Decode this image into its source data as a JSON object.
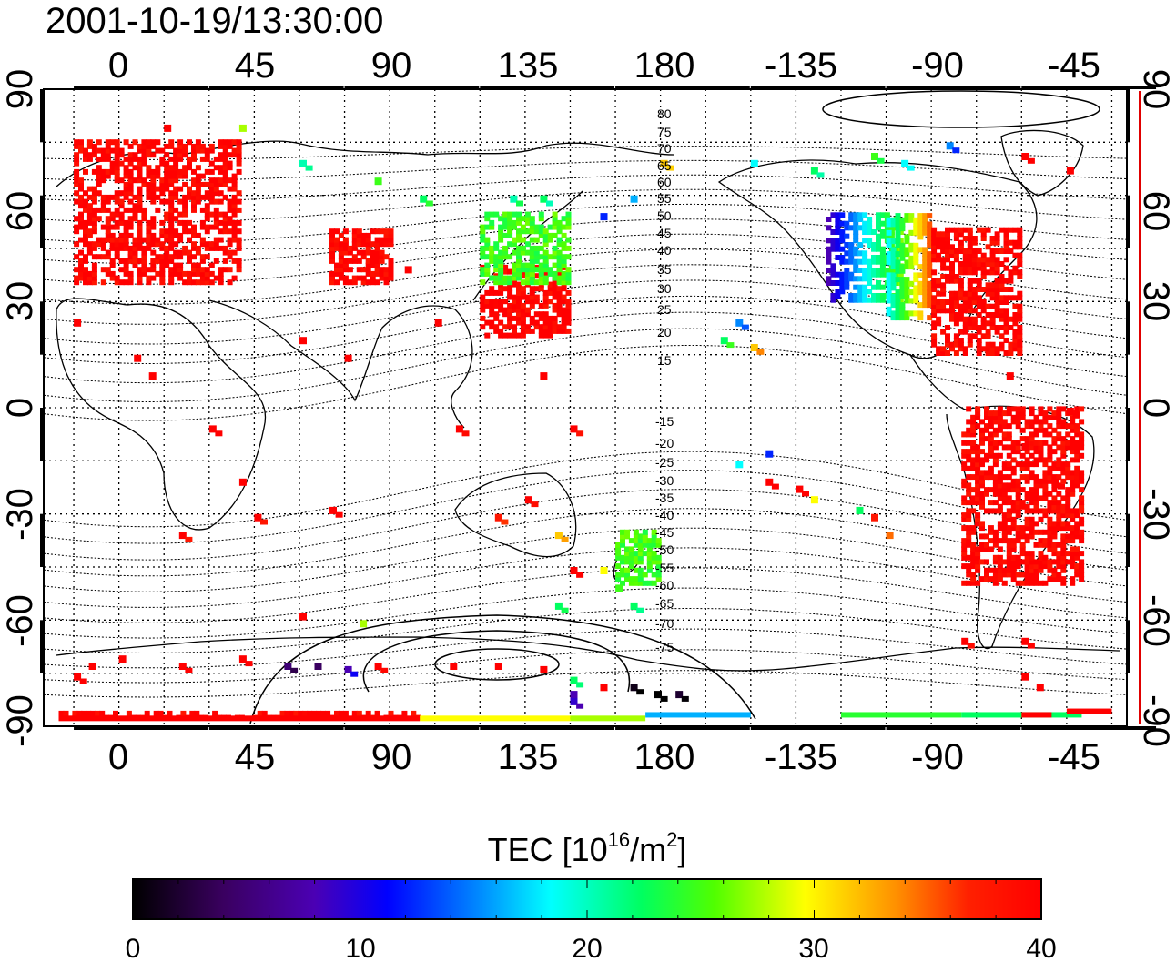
{
  "timestamp": "2001-10-19/13:30:00",
  "axes": {
    "top_ticks": [
      "0",
      "45",
      "90",
      "135",
      "180",
      "-135",
      "-90",
      "-45"
    ],
    "bottom_ticks": [
      "0",
      "45",
      "90",
      "135",
      "180",
      "-135",
      "-90",
      "-45"
    ],
    "left_ticks": [
      "90",
      "60",
      "30",
      "0",
      "-30",
      "-60",
      "-90"
    ],
    "right_ticks": [
      "90",
      "60",
      "30",
      "0",
      "-30",
      "-60",
      "-90"
    ]
  },
  "contour_labels": {
    "north": [
      "80",
      "75",
      "70",
      "65",
      "60",
      "55",
      "50",
      "45",
      "40",
      "35",
      "30",
      "25",
      "20",
      "15"
    ],
    "south": [
      "-15",
      "-20",
      "-25",
      "-30",
      "-35",
      "-40",
      "-45",
      "-50",
      "-55",
      "-60",
      "-65",
      "-70",
      "-75"
    ]
  },
  "colorbar": {
    "title_main": "TEC  [10",
    "title_sup1": "16",
    "title_mid": "/m",
    "title_sup2": "2",
    "title_end": "]",
    "ticks": [
      "0",
      "10",
      "20",
      "30",
      "40"
    ],
    "min": 0,
    "max": 40
  },
  "colors": {
    "high_tec": "#ff0000",
    "low_tec": "#1e2bff",
    "frame": "#000000",
    "right_axis_accent": "#e00000"
  },
  "chart_data": {
    "type": "heatmap",
    "title": "2001-10-19/13:30:00",
    "xlabel": "",
    "ylabel": "",
    "xlim": [
      -25,
      335
    ],
    "ylim": [
      -90,
      90
    ],
    "colorbar_label": "TEC [10^16/m^2]",
    "colorbar_range": [
      0,
      40
    ],
    "regions": [
      {
        "lon_range": [
          -15,
          40
        ],
        "lat_range": [
          35,
          75
        ],
        "tec": 40
      },
      {
        "lon_range": [
          70,
          90
        ],
        "lat_range": [
          35,
          50
        ],
        "tec": 40
      },
      {
        "lon_range": [
          120,
          150
        ],
        "lat_range": [
          20,
          40
        ],
        "tec": 40
      },
      {
        "lon_range": [
          120,
          150
        ],
        "lat_range": [
          35,
          55
        ],
        "tec": 25
      },
      {
        "lon_range": [
          235,
          260
        ],
        "lat_range": [
          30,
          55
        ],
        "tec": 10
      },
      {
        "lon_range": [
          255,
          270
        ],
        "lat_range": [
          25,
          55
        ],
        "tec": 25
      },
      {
        "lon_range": [
          270,
          300
        ],
        "lat_range": [
          15,
          50
        ],
        "tec": 40
      },
      {
        "lon_range": [
          280,
          320
        ],
        "lat_range": [
          -50,
          0
        ],
        "tec": 40
      },
      {
        "lon_range": [
          165,
          180
        ],
        "lat_range": [
          -50,
          -35
        ],
        "tec": 25
      },
      {
        "lon_range": [
          -20,
          100
        ],
        "lat_range": [
          -88,
          -86
        ],
        "tec": 40
      }
    ]
  }
}
